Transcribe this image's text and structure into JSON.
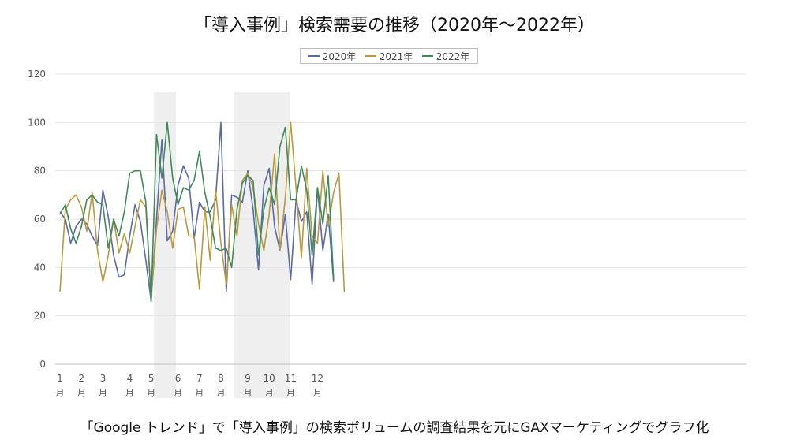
{
  "title": "「導入事例」検索需要の推移（2020年〜2022年）",
  "caption": "「Google トレンド」で「導入事例」の検索ボリュームの調査結果を元にGAXマーケティングでグラフ化",
  "chart_data": {
    "type": "line",
    "ylim": [
      0,
      120
    ],
    "yticks": [
      0,
      20,
      40,
      60,
      80,
      100,
      120
    ],
    "grid": "horizontal",
    "legend_position": "top",
    "month_unit": "月",
    "months": [
      {
        "label": "1",
        "start": 0
      },
      {
        "label": "2",
        "start": 4
      },
      {
        "label": "3",
        "start": 8
      },
      {
        "label": "4",
        "start": 13
      },
      {
        "label": "5",
        "start": 17
      },
      {
        "label": "6",
        "start": 22
      },
      {
        "label": "7",
        "start": 26
      },
      {
        "label": "8",
        "start": 30
      },
      {
        "label": "9",
        "start": 35
      },
      {
        "label": "10",
        "start": 39
      },
      {
        "label": "11",
        "start": 43
      },
      {
        "label": "12",
        "start": 48
      }
    ],
    "highlight_ranges": [
      [
        17.5,
        21.6
      ],
      [
        32.5,
        42.8
      ]
    ],
    "series": [
      {
        "name": "2020年",
        "color": "#5b6aa8",
        "values": [
          63,
          60,
          50,
          57,
          60,
          58,
          53,
          49,
          72,
          61,
          45,
          36,
          37,
          53,
          66,
          59,
          43,
          26,
          60,
          93,
          51,
          55,
          74,
          82,
          77,
          52,
          67,
          63,
          63,
          68,
          100,
          30,
          70,
          69,
          67,
          80,
          64,
          39,
          74,
          81,
          57,
          47,
          62,
          35,
          68,
          59,
          63,
          33,
          73,
          47,
          62,
          34
        ]
      },
      {
        "name": "2021年",
        "color": "#b89a3e",
        "values": [
          30,
          64,
          68,
          70,
          65,
          55,
          71,
          47,
          34,
          45,
          60,
          46,
          54,
          46,
          57,
          68,
          65,
          27,
          56,
          72,
          63,
          48,
          64,
          65,
          53,
          53,
          31,
          65,
          43,
          72,
          50,
          33,
          66,
          53,
          76,
          79,
          73,
          58,
          47,
          62,
          87,
          47,
          69,
          100,
          73,
          44,
          81,
          53,
          50,
          80,
          57,
          71,
          79,
          30
        ]
      },
      {
        "name": "2022年",
        "color": "#3f8a58",
        "values": [
          62,
          66,
          56,
          50,
          57,
          68,
          70,
          67,
          66,
          48,
          60,
          53,
          63,
          79,
          80,
          80,
          67,
          26,
          95,
          77,
          100,
          77,
          66,
          73,
          72,
          76,
          88,
          71,
          61,
          48,
          47,
          48,
          40,
          64,
          75,
          78,
          76,
          45,
          64,
          73,
          66,
          90,
          98,
          68,
          68,
          82,
          72,
          45,
          73,
          58,
          78,
          35
        ]
      }
    ]
  }
}
